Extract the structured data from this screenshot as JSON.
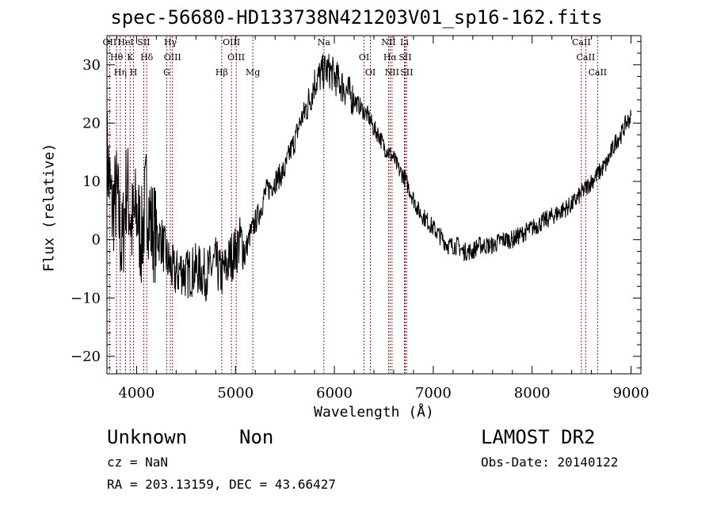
{
  "header": {
    "title": "spec-56680-HD133738N421203V01_sp16-162.fits"
  },
  "footer": {
    "class_name": "Unknown",
    "subclass": "Non",
    "survey": "LAMOST DR2",
    "cz": "cz = NaN",
    "obs_date": "Obs-Date: 20140122",
    "radec": "RA = 203.13159, DEC =  43.66427"
  },
  "chart_data": {
    "type": "line",
    "title": "spec-56680-HD133738N421203V01_sp16-162.fits",
    "xlabel": "Wavelength (Å)",
    "ylabel": "Flux (relative)",
    "xlim": [
      3700,
      9100
    ],
    "ylim": [
      -23,
      35
    ],
    "x_ticks": [
      4000,
      5000,
      6000,
      7000,
      8000,
      9000
    ],
    "y_ticks": [
      -20,
      -10,
      0,
      10,
      20,
      30
    ],
    "grid": false,
    "line_color": "#000000",
    "marker_color": "#8b0000",
    "series": [
      {
        "x": [
          3700,
          3750,
          3800,
          3850,
          3900,
          3950,
          4000,
          4050,
          4100,
          4150,
          4200,
          4250,
          4300,
          4350,
          4400,
          4450,
          4500,
          4600,
          4700,
          4800,
          4850,
          4900,
          4950,
          5000,
          5050,
          5100,
          5150,
          5200,
          5250,
          5300,
          5350,
          5400,
          5450,
          5500,
          5550,
          5600,
          5650,
          5700,
          5750,
          5800,
          5850,
          5900,
          5950,
          6000,
          6050,
          6100,
          6150,
          6200,
          6250,
          6300,
          6350,
          6400,
          6450,
          6500,
          6550,
          6600,
          6650,
          6700,
          6750,
          6800,
          6850,
          6900,
          6950,
          7000,
          7050,
          7100,
          7150,
          7200,
          7250,
          7300,
          7350,
          7400,
          7450,
          7500,
          7550,
          7600,
          7700,
          7800,
          7900,
          8000,
          8100,
          8200,
          8300,
          8400,
          8500,
          8550,
          8600,
          8650,
          8700,
          8750,
          8800,
          8850,
          8900,
          8950,
          9000
        ],
        "y": [
          15,
          5,
          8,
          -2,
          10,
          2,
          5,
          0,
          8,
          2,
          1,
          0,
          -3,
          -5,
          -6,
          -5,
          -6,
          -5,
          -6,
          -4,
          -6,
          -5,
          -3,
          -2,
          0,
          -2,
          1,
          3,
          5,
          8,
          9,
          10,
          11,
          12,
          15,
          17,
          20,
          22,
          24,
          27,
          28,
          29,
          29,
          28,
          27,
          26,
          25,
          24,
          23,
          22,
          21,
          19,
          18,
          16,
          15,
          14,
          12,
          11,
          9,
          7,
          5,
          4,
          3,
          2,
          1,
          0,
          -1,
          -1,
          -1,
          -2,
          -2,
          -2,
          -1,
          -1,
          -1,
          -1,
          0,
          0,
          1,
          2,
          3,
          4,
          5,
          6,
          8,
          9,
          10,
          11,
          12,
          13,
          15,
          17,
          18,
          20,
          21
        ]
      }
    ],
    "lines": [
      {
        "label": "OII",
        "x": 3727
      },
      {
        "label": "Hθ",
        "x": 3797
      },
      {
        "label": "Hη",
        "x": 3835
      },
      {
        "label": "HeI",
        "x": 3889
      },
      {
        "label": "K",
        "x": 3934
      },
      {
        "label": "H",
        "x": 3969
      },
      {
        "label": "SII",
        "x": 4072
      },
      {
        "label": "Hδ",
        "x": 4102
      },
      {
        "label": "G",
        "x": 4304
      },
      {
        "label": "Hγ",
        "x": 4341
      },
      {
        "label": "OIII",
        "x": 4363
      },
      {
        "label": "Hβ",
        "x": 4861
      },
      {
        "label": "OIII",
        "x": 4959
      },
      {
        "label": "OIII",
        "x": 5007
      },
      {
        "label": "Mg",
        "x": 5175
      },
      {
        "label": "Na",
        "x": 5894
      },
      {
        "label": "OI",
        "x": 6300
      },
      {
        "label": "OI",
        "x": 6364
      },
      {
        "label": "NII",
        "x": 6548
      },
      {
        "label": "Hα",
        "x": 6563
      },
      {
        "label": "NII",
        "x": 6583
      },
      {
        "label": "Li",
        "x": 6708
      },
      {
        "label": "SII",
        "x": 6716
      },
      {
        "label": "SII",
        "x": 6731
      },
      {
        "label": "CaII",
        "x": 8498
      },
      {
        "label": "CaII",
        "x": 8542
      },
      {
        "label": "CaII",
        "x": 8662
      }
    ]
  }
}
